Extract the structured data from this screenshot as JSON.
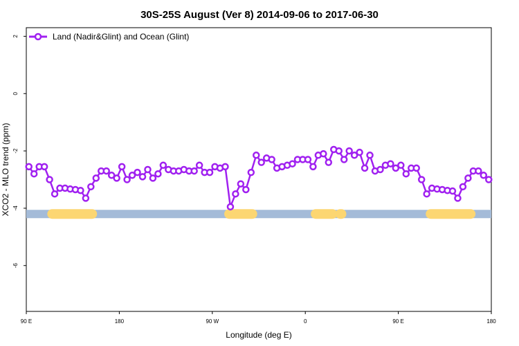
{
  "chart_data": {
    "type": "line",
    "title": "30S-25S August (Ver 8)   2014-09-06 to 2017-06-30",
    "xlabel": "Longitude (deg E)",
    "ylabel": "XCO2 - MLO trend (ppm)",
    "xlim": [
      90,
      450
    ],
    "ylim": [
      -7.6,
      2.3
    ],
    "x_ticks": [
      90,
      162,
      234,
      306,
      378,
      450
    ],
    "x_tick_labels": [
      "90 E",
      "180",
      "90 W",
      "0",
      "90 E",
      "180"
    ],
    "y_ticks": [
      2,
      0,
      -2,
      -4,
      -6
    ],
    "y_tick_labels": [
      "2",
      "0",
      "-2",
      "-4",
      "-6"
    ],
    "grid": false,
    "legend_position": "top-left",
    "series": [
      {
        "name": "Land (Nadir&Glint) and Ocean (Glint)",
        "color": "#a020f0",
        "x": [
          92,
          96,
          100,
          104,
          108,
          112,
          116,
          120,
          124,
          128,
          132,
          136,
          140,
          144,
          148,
          152,
          156,
          160,
          164,
          168,
          172,
          176,
          180,
          184,
          188,
          192,
          196,
          200,
          204,
          208,
          212,
          216,
          220,
          224,
          228,
          232,
          236,
          240,
          244,
          248,
          252,
          256,
          260,
          264,
          268,
          272,
          276,
          280,
          284,
          288,
          292,
          296,
          300,
          304,
          308,
          312,
          316,
          320,
          324,
          328,
          332,
          336,
          340,
          344,
          348,
          352,
          356,
          360,
          364,
          368,
          372,
          376,
          380,
          384,
          388,
          392,
          396,
          400,
          404,
          408,
          412,
          416,
          420,
          424,
          428,
          432,
          436,
          440,
          444,
          448
        ],
        "values": [
          -2.55,
          -2.8,
          -2.55,
          -2.55,
          -3.0,
          -3.5,
          -3.3,
          -3.3,
          -3.33,
          -3.35,
          -3.38,
          -3.65,
          -3.25,
          -2.95,
          -2.7,
          -2.7,
          -2.85,
          -2.95,
          -2.55,
          -3.0,
          -2.85,
          -2.75,
          -2.9,
          -2.65,
          -2.95,
          -2.8,
          -2.5,
          -2.65,
          -2.7,
          -2.7,
          -2.65,
          -2.7,
          -2.7,
          -2.5,
          -2.75,
          -2.75,
          -2.55,
          -2.6,
          -2.55,
          -3.95,
          -3.5,
          -3.15,
          -3.35,
          -2.75,
          -2.15,
          -2.4,
          -2.25,
          -2.3,
          -2.6,
          -2.55,
          -2.5,
          -2.45,
          -2.3,
          -2.3,
          -2.3,
          -2.55,
          -2.15,
          -2.1,
          -2.4,
          -1.95,
          -2.0,
          -2.3,
          -2.0,
          -2.15,
          -2.05,
          -2.6,
          -2.15,
          -2.7,
          -2.65,
          -2.5,
          -2.45,
          -2.6,
          -2.5,
          -2.8,
          -2.6,
          -2.6,
          -3.0,
          -3.5,
          -3.3,
          -3.33,
          -3.35,
          -3.38,
          -3.4,
          -3.65,
          -3.25,
          -2.95,
          -2.7,
          -2.7,
          -2.85,
          -3.0
        ]
      }
    ],
    "surface_bar": {
      "y": -4.2,
      "ocean_color": "#a4bbd8",
      "land_color": "#fcd672",
      "land_segments": [
        [
          110,
          141
        ],
        [
          247,
          265
        ],
        [
          314,
          327
        ],
        [
          333,
          334
        ],
        [
          403,
          434
        ]
      ]
    }
  }
}
